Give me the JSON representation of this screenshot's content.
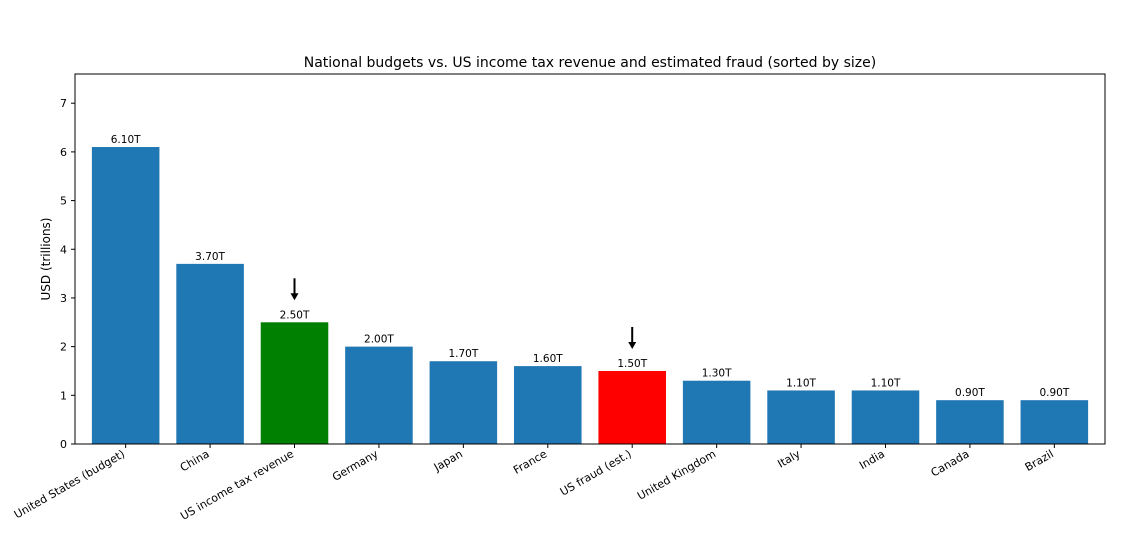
{
  "chart_data": {
    "type": "bar",
    "title": "National budgets vs. US income tax revenue and estimated fraud (sorted by size)",
    "xlabel": "",
    "ylabel": "USD (trillions)",
    "ylim": [
      0,
      7.6
    ],
    "yticks": [
      0,
      1,
      2,
      3,
      4,
      5,
      6,
      7
    ],
    "grid": false,
    "categories": [
      "United States (budget)",
      "China",
      "US income tax revenue",
      "Germany",
      "Japan",
      "France",
      "US fraud (est.)",
      "United Kingdom",
      "Italy",
      "India",
      "Canada",
      "Brazil"
    ],
    "values": [
      6.1,
      3.7,
      2.5,
      2.0,
      1.7,
      1.6,
      1.5,
      1.3,
      1.1,
      1.1,
      0.9,
      0.9
    ],
    "value_labels": [
      "6.10T",
      "3.70T",
      "2.50T",
      "2.00T",
      "1.70T",
      "1.60T",
      "1.50T",
      "1.30T",
      "1.10T",
      "1.10T",
      "0.90T",
      "0.90T"
    ],
    "colors": [
      "#1f77b4",
      "#1f77b4",
      "#008000",
      "#1f77b4",
      "#1f77b4",
      "#1f77b4",
      "#ff0000",
      "#1f77b4",
      "#1f77b4",
      "#1f77b4",
      "#1f77b4",
      "#1f77b4"
    ],
    "annotations": [
      {
        "type": "arrow",
        "category": "US income tax revenue"
      },
      {
        "type": "arrow",
        "category": "US fraud (est.)"
      }
    ]
  }
}
